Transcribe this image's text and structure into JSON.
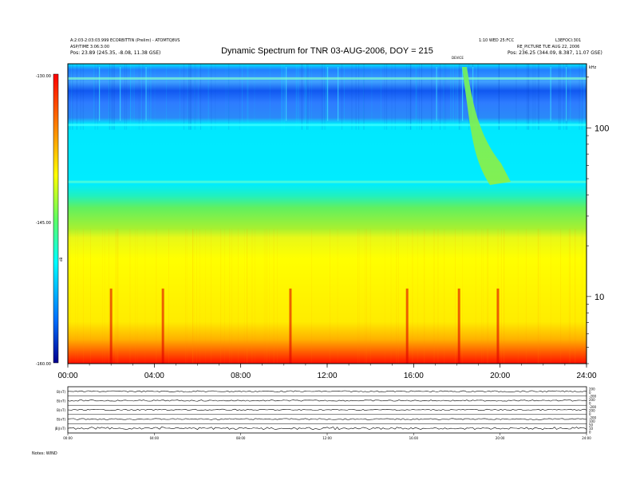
{
  "header": {
    "title": "Dynamic Spectrum for TNR 03-AUG-2006, DOY = 215",
    "left_line1": "A:2:03-2:03:03.999 ECORBITTIN (Prelim) - ATOMTQ8VS",
    "left_line2": "ASP/TIME 3:06:3:00",
    "left_line3": "Pos:  23.89 (245.35, -8.08, 11.38 GSE)",
    "right_line1": "1:10 WED 25:FCC",
    "right_line2": "L3EFOCI:301",
    "right_line3": "RE_PICTURE TUE AUG 22, 2006",
    "right_line4": "Pos:  236.25 (344.09, 8.387, 11.07 GSE)",
    "event_label": "DEVICE"
  },
  "colorbar": {
    "top_label": "-130.00",
    "mid_label": "-145.00",
    "bottom_label": "-160.00",
    "unit_label": "dB",
    "colors": [
      "#ff0000",
      "#ff8000",
      "#ffff00",
      "#80ff40",
      "#00ffff",
      "#0060ff",
      "#0000a0"
    ]
  },
  "right_axis": {
    "unit": "kHz",
    "labels": [
      {
        "value": 100,
        "text": "100"
      },
      {
        "value": 10,
        "text": "10"
      }
    ]
  },
  "chart_data": {
    "type": "heatmap",
    "title": "Dynamic Spectrum for TNR 03-AUG-2006, DOY = 215",
    "xlabel": "",
    "ylabel": "kHz",
    "x_ticks": [
      "00:00",
      "04:00",
      "08:00",
      "12:00",
      "16:00",
      "20:00",
      "24:00"
    ],
    "xlim_hours": [
      0,
      24
    ],
    "ylim_khz": [
      4,
      240
    ],
    "y_scale": "log",
    "colorbar_range_db": [
      -160,
      -130
    ],
    "features": [
      {
        "name": "type III burst",
        "start_hour": 18.0,
        "end_hour": 19.5,
        "start_khz": 240,
        "end_khz": 50
      },
      {
        "name": "bursts",
        "hours": [
          2.0,
          4.4,
          10.3,
          15.7,
          18.1,
          19.9
        ],
        "khz": [
          5,
          10
        ]
      }
    ]
  },
  "panels": {
    "labels": [
      "B(nT)",
      "B(nT)",
      "B(nT)",
      "B(nT)",
      "|B|(nT)"
    ],
    "right_labels": [
      "200",
      "0",
      "-200",
      "200",
      "0",
      "-200",
      "200",
      "0",
      "-200",
      "100",
      "50",
      "10",
      "0"
    ],
    "bottom_ticks": [
      "00:00",
      "04:00",
      "08:00",
      "12:00",
      "16:00",
      "20:00",
      "24:00"
    ],
    "footer": "Notes: WIND"
  }
}
